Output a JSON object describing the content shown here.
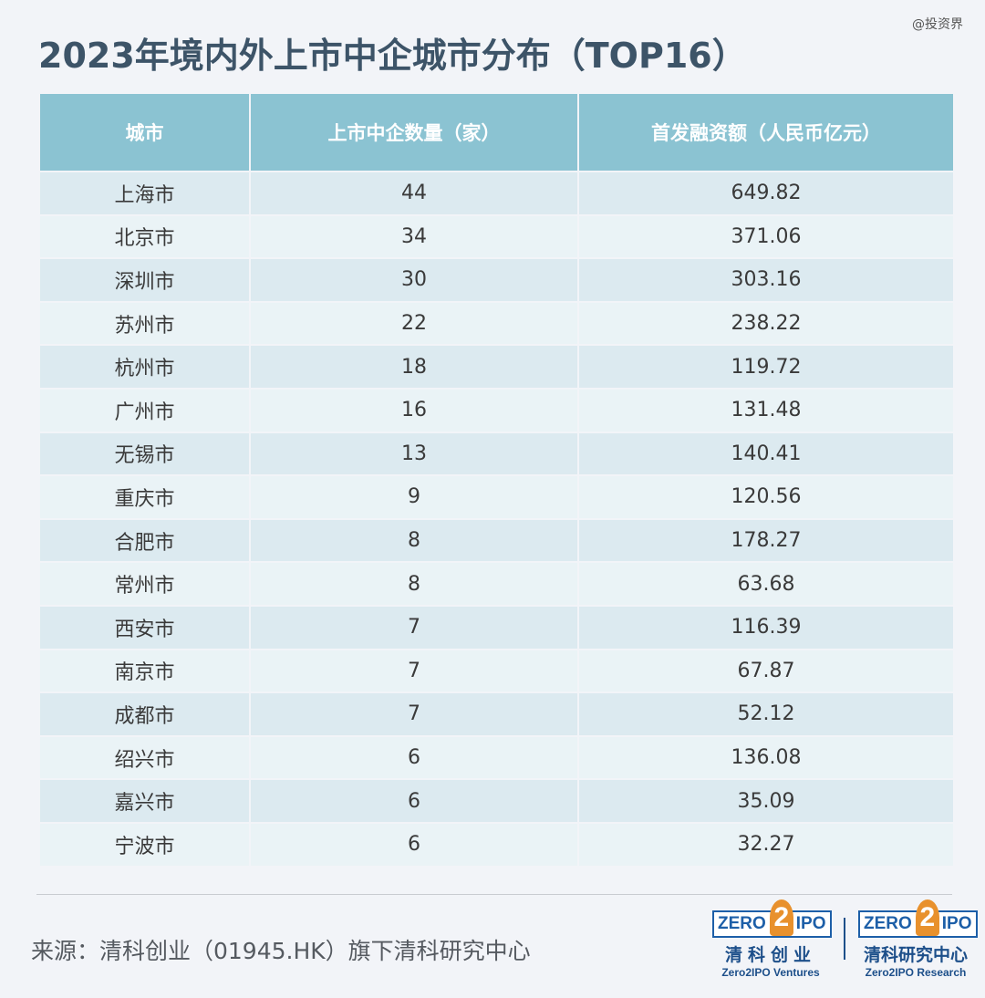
{
  "watermark": "@投资界",
  "title": "2023年境内外上市中企城市分布（TOP16）",
  "chart_data": {
    "type": "table",
    "columns": [
      "城市",
      "上市中企数量（家）",
      "首发融资额（人民币亿元）"
    ],
    "rows": [
      [
        "上海市",
        "44",
        "649.82"
      ],
      [
        "北京市",
        "34",
        "371.06"
      ],
      [
        "深圳市",
        "30",
        "303.16"
      ],
      [
        "苏州市",
        "22",
        "238.22"
      ],
      [
        "杭州市",
        "18",
        "119.72"
      ],
      [
        "广州市",
        "16",
        "131.48"
      ],
      [
        "无锡市",
        "13",
        "140.41"
      ],
      [
        "重庆市",
        "9",
        "120.56"
      ],
      [
        "合肥市",
        "8",
        "178.27"
      ],
      [
        "常州市",
        "8",
        "63.68"
      ],
      [
        "西安市",
        "7",
        "116.39"
      ],
      [
        "南京市",
        "7",
        "67.87"
      ],
      [
        "成都市",
        "7",
        "52.12"
      ],
      [
        "绍兴市",
        "6",
        "136.08"
      ],
      [
        "嘉兴市",
        "6",
        "35.09"
      ],
      [
        "宁波市",
        "6",
        "32.27"
      ]
    ]
  },
  "source": "来源：清科创业（01945.HK）旗下清科研究中心",
  "logos": [
    {
      "zero": "ZERO",
      "two": "2",
      "ipo": "IPO",
      "cn": "清科创业",
      "en": "Zero2IPO Ventures"
    },
    {
      "zero": "ZERO",
      "two": "2",
      "ipo": "IPO",
      "cn": "清科研究中心",
      "en": "Zero2IPO Research"
    }
  ],
  "colors": {
    "header_bg": "#8bc3d2",
    "row_odd": "#dceaf0",
    "row_even": "#eaf3f6",
    "title": "#3d5468",
    "logo_blue": "#1d5fa8",
    "logo_orange": "#e8912d"
  }
}
